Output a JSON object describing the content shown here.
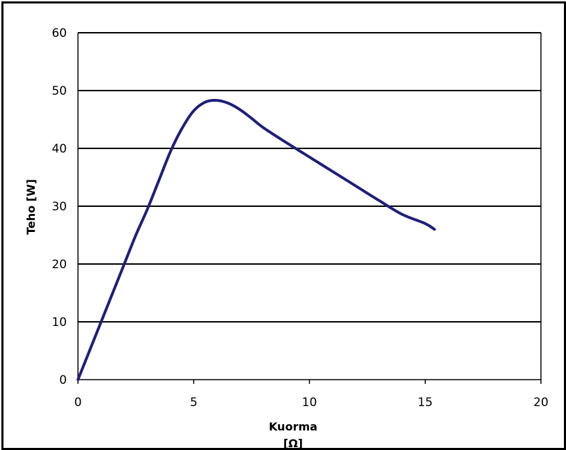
{
  "chart_data": {
    "type": "line",
    "title": "",
    "xlabel": "Kuorma",
    "xlabel_unit": "[Ω]",
    "ylabel": "Teho [W]",
    "xlim": [
      0,
      20
    ],
    "ylim": [
      0,
      60
    ],
    "xticks": [
      "0",
      "5",
      "10",
      "15",
      "20"
    ],
    "yticks": [
      "0",
      "10",
      "20",
      "30",
      "40",
      "50",
      "60"
    ],
    "grid": "horizontal",
    "legend": "none",
    "colors": {
      "line": "#1f1f7a",
      "grid": "#000000",
      "frame": "#000000"
    },
    "series": [
      {
        "x": [
          0,
          0.5,
          1.0,
          1.5,
          2.0,
          2.5,
          3.0,
          3.5,
          4.0,
          4.5,
          5.0,
          5.5,
          6.0,
          6.5,
          7.0,
          7.5,
          8.0,
          9.0,
          10.0,
          11.0,
          12.0,
          13.0,
          14.0,
          15.0,
          15.4
        ],
        "y": [
          0,
          5,
          10,
          15,
          20,
          25,
          29.5,
          34.5,
          39.5,
          43.5,
          46.5,
          48,
          48.3,
          47.8,
          46.7,
          45.2,
          43.6,
          41,
          38.5,
          36,
          33.5,
          31,
          28.6,
          27,
          26
        ]
      }
    ]
  }
}
